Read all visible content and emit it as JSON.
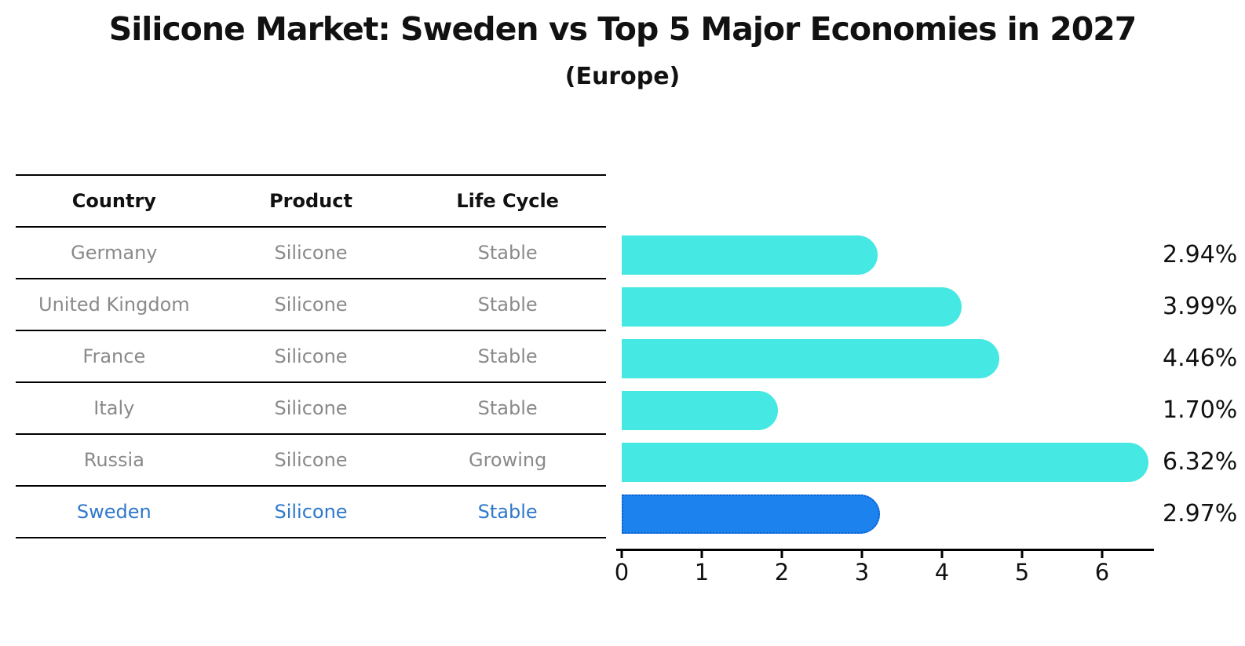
{
  "title": "Silicone Market: Sweden vs Top 5 Major Economies in 2027",
  "subtitle": "(Europe)",
  "table": {
    "headers": [
      "Country",
      "Product",
      "Life Cycle"
    ],
    "rows": [
      {
        "country": "Germany",
        "product": "Silicone",
        "life_cycle": "Stable",
        "highlighted": false
      },
      {
        "country": "United Kingdom",
        "product": "Silicone",
        "life_cycle": "Stable",
        "highlighted": false
      },
      {
        "country": "France",
        "product": "Silicone",
        "life_cycle": "Stable",
        "highlighted": false
      },
      {
        "country": "Italy",
        "product": "Silicone",
        "life_cycle": "Stable",
        "highlighted": false
      },
      {
        "country": "Russia",
        "product": "Silicone",
        "life_cycle": "Growing",
        "highlighted": false
      },
      {
        "country": "Sweden",
        "product": "Silicone",
        "life_cycle": "Stable",
        "highlighted": true
      }
    ]
  },
  "chart_data": {
    "type": "bar",
    "orientation": "horizontal",
    "title": "Silicone Market: Sweden vs Top 5 Major Economies in 2027",
    "subtitle": "(Europe)",
    "categories": [
      "Germany",
      "United Kingdom",
      "France",
      "Italy",
      "Russia",
      "Sweden"
    ],
    "values": [
      2.94,
      3.99,
      4.46,
      1.7,
      6.32,
      2.97
    ],
    "value_labels": [
      "2.94%",
      "3.99%",
      "4.46%",
      "1.70%",
      "6.32%",
      "2.97%"
    ],
    "xlabel": "",
    "ylabel": "",
    "xlim": [
      0,
      6.65
    ],
    "xticks": [
      0,
      1,
      2,
      3,
      4,
      5,
      6
    ],
    "grid": false,
    "legend": "none",
    "bar_color": "#45e8e2",
    "highlight_color": "#1b82ee",
    "highlight_border_color": "#0f5fd0",
    "highlight_index": 5
  }
}
